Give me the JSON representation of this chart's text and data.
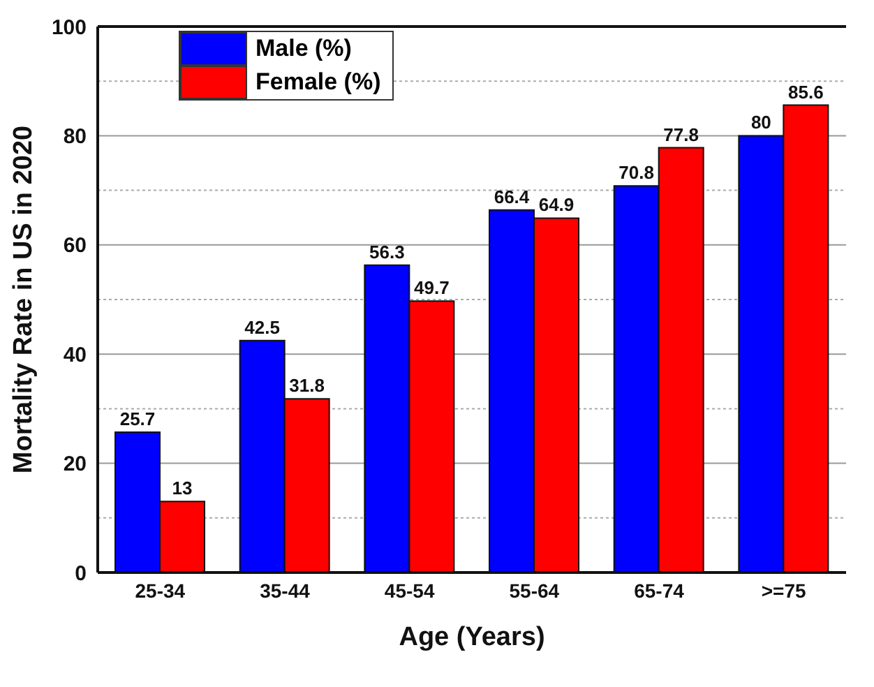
{
  "chart_data": {
    "type": "bar",
    "xlabel": "Age (Years)",
    "ylabel": "Mortality Rate in US in 2020",
    "categories": [
      "25-34",
      "35-44",
      "45-54",
      "55-64",
      "65-74",
      ">=75"
    ],
    "series": [
      {
        "name": "Male (%)",
        "color": "#0000ff",
        "values": [
          25.7,
          42.5,
          56.3,
          66.4,
          70.8,
          80
        ]
      },
      {
        "name": "Female (%)",
        "color": "#ff0000",
        "values": [
          13,
          31.8,
          49.7,
          64.9,
          77.8,
          85.6
        ]
      }
    ],
    "ylim": [
      0,
      100
    ],
    "yticks": [
      0,
      {
        "value": 10,
        "label": null
      },
      20,
      {
        "value": 30,
        "label": null
      },
      40,
      {
        "value": 50,
        "label": null
      },
      60,
      {
        "value": 70,
        "label": null
      },
      80,
      {
        "value": 90,
        "label": null
      },
      100
    ],
    "grid": "y",
    "legend": "top left",
    "data_labels": true
  }
}
